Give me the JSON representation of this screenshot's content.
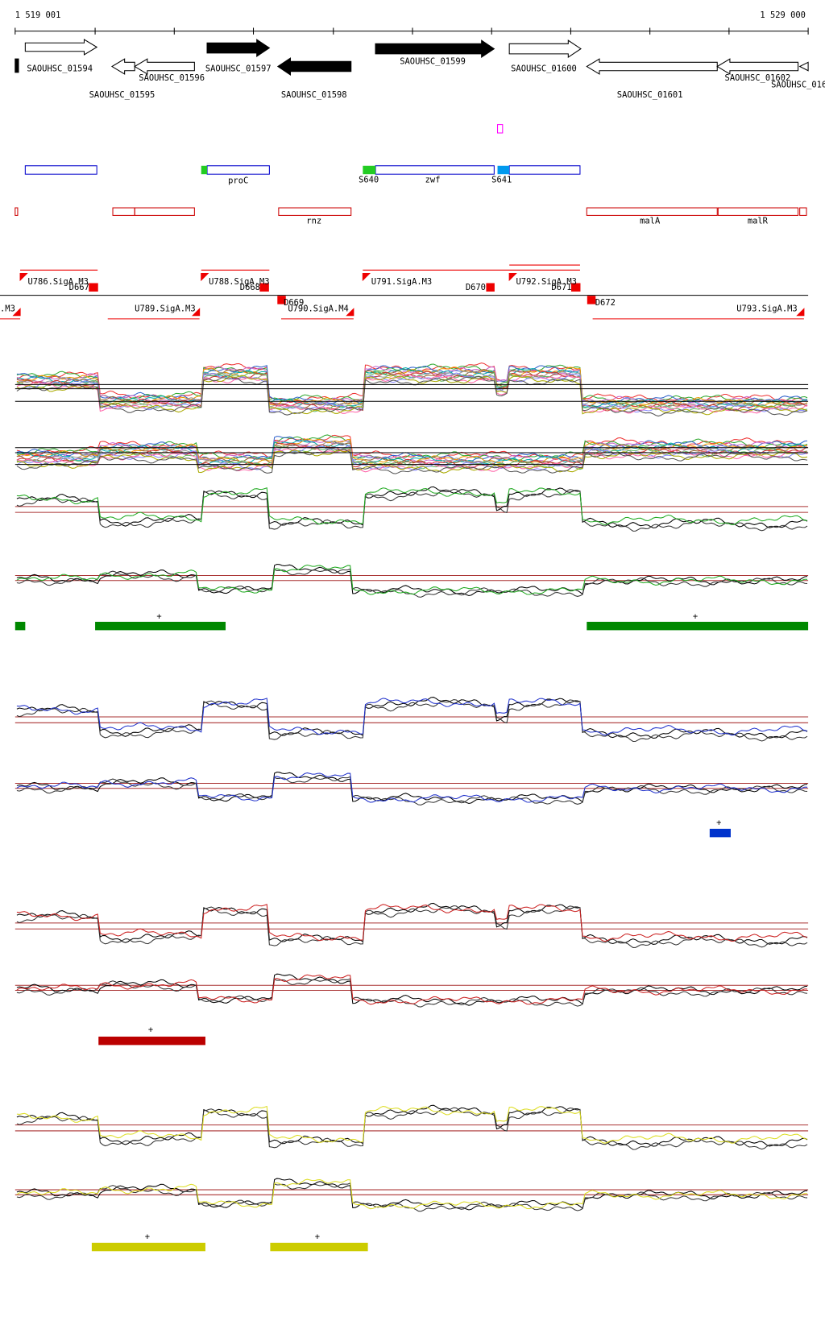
{
  "ruler": {
    "start": "1 519 001",
    "end": "1 529 000"
  },
  "genes": [
    "SAOUHSC_01594",
    "SAOUHSC_01595",
    "SAOUHSC_01596",
    "SAOUHSC_01597",
    "SAOUHSC_01598",
    "SAOUHSC_01599",
    "SAOUHSC_01600",
    "SAOUHSC_01601",
    "SAOUHSC_01602",
    "SAOUHSC_016"
  ],
  "features_blue": [
    "proC",
    "S640",
    "zwf",
    "S641"
  ],
  "features_red": [
    "rnz",
    "malA",
    "malR"
  ],
  "promoters": [
    ".M3",
    "U786.SigA.M3",
    "D667",
    "U788.SigA.M3",
    "D668",
    "D669",
    "U790.SigA.M4",
    "U789.SigA.M3",
    "U791.SigA.M3",
    "D670",
    "U792.SigA.M3",
    "D671",
    "D672",
    "U793.SigA.M3"
  ],
  "track_marks": {
    "green": [
      "+",
      "+"
    ],
    "blue": [
      "+"
    ],
    "red": [
      "+"
    ],
    "yellow": [
      "+",
      "+"
    ]
  }
}
